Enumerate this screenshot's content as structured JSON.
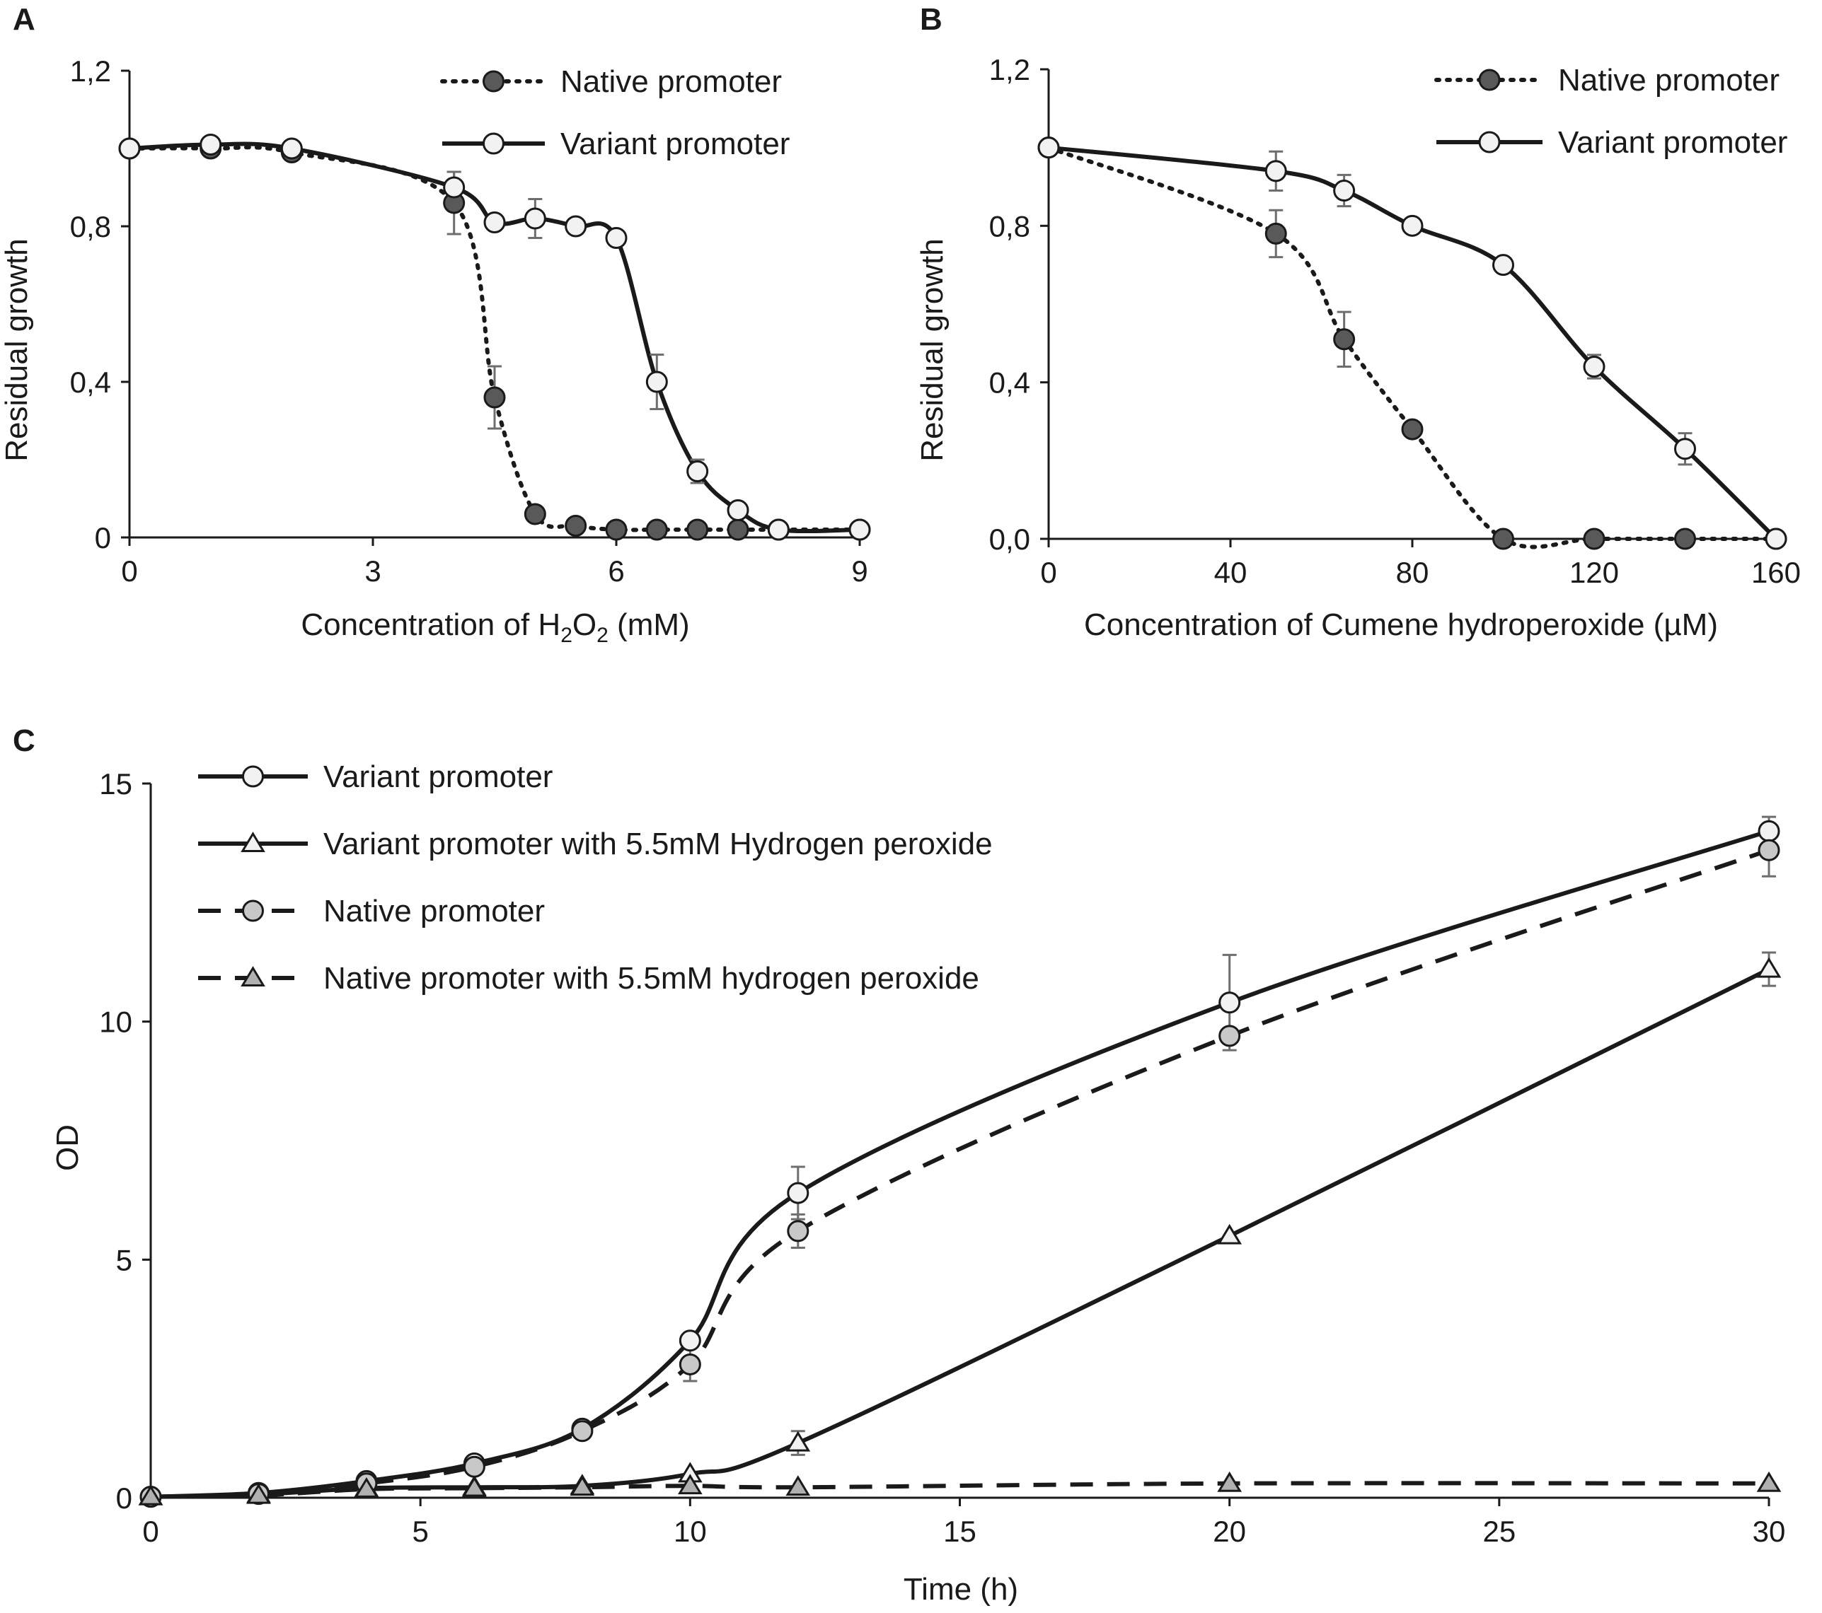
{
  "figure": {
    "panels": [
      "A",
      "B",
      "C"
    ]
  },
  "chart_data": [
    {
      "id": "A",
      "type": "line",
      "xlabel_main": "Concentration of H",
      "xlabel_sub1": "2",
      "xlabel_mid": "O",
      "xlabel_sub2": "2",
      "xlabel_end": " (mM)",
      "ylabel": "Residual growth",
      "xlim": [
        0,
        9
      ],
      "ylim": [
        0,
        1.2
      ],
      "xticks": [
        0,
        3,
        6,
        9
      ],
      "xtick_labels": [
        "0",
        "3",
        "6",
        "9"
      ],
      "yticks": [
        0,
        0.4,
        0.8,
        1.2
      ],
      "ytick_labels": [
        "0",
        "0,4",
        "0,8",
        "1,2"
      ],
      "legend_position": "top-right",
      "series": [
        {
          "name": "Native promoter",
          "style": "dotted",
          "marker": "circle",
          "marker_fill": "#595959",
          "x": [
            0,
            1,
            2,
            4,
            4.5,
            5,
            5.5,
            6,
            6.5,
            7,
            7.5,
            8,
            9
          ],
          "y": [
            1.0,
            1.0,
            0.99,
            0.86,
            0.36,
            0.06,
            0.03,
            0.02,
            0.02,
            0.02,
            0.02,
            0.02,
            0.02
          ],
          "err": [
            0,
            0,
            0,
            0.08,
            0.08,
            0,
            0,
            0,
            0,
            0,
            0,
            0,
            0
          ]
        },
        {
          "name": "Variant promoter",
          "style": "solid",
          "marker": "circle",
          "marker_fill": "#f2f2f2",
          "x": [
            0,
            1,
            2,
            4,
            4.5,
            5,
            5.5,
            6,
            6.5,
            7,
            7.5,
            8,
            9
          ],
          "y": [
            1.0,
            1.01,
            1.0,
            0.9,
            0.81,
            0.82,
            0.8,
            0.77,
            0.4,
            0.17,
            0.07,
            0.02,
            0.02
          ],
          "err": [
            0,
            0,
            0,
            0.04,
            0,
            0.05,
            0,
            0,
            0.07,
            0.03,
            0,
            0,
            0
          ]
        }
      ]
    },
    {
      "id": "B",
      "type": "line",
      "xlabel": "Concentration of Cumene hydroperoxide (µM)",
      "ylabel": "Residual growth",
      "xlim": [
        0,
        160
      ],
      "ylim": [
        0,
        1.2
      ],
      "xticks": [
        0,
        40,
        80,
        120,
        160
      ],
      "xtick_labels": [
        "0",
        "40",
        "80",
        "120",
        "160"
      ],
      "yticks": [
        0,
        0.4,
        0.8,
        1.2
      ],
      "ytick_labels": [
        "0,0",
        "0,4",
        "0,8",
        "1,2"
      ],
      "legend_position": "top-right",
      "series": [
        {
          "name": "Native promoter",
          "style": "dotted",
          "marker": "circle",
          "marker_fill": "#595959",
          "x": [
            0,
            50,
            65,
            80,
            100,
            120,
            140,
            160
          ],
          "y": [
            1.0,
            0.78,
            0.51,
            0.28,
            0.0,
            0.0,
            0.0,
            0.0
          ],
          "err": [
            0,
            0.06,
            0.07,
            0,
            0,
            0,
            0,
            0
          ]
        },
        {
          "name": "Variant promoter",
          "style": "solid",
          "marker": "circle",
          "marker_fill": "#f2f2f2",
          "x": [
            0,
            50,
            65,
            80,
            100,
            120,
            140,
            160
          ],
          "y": [
            1.0,
            0.94,
            0.89,
            0.8,
            0.7,
            0.44,
            0.23,
            0.0
          ],
          "err": [
            0,
            0.05,
            0.04,
            0,
            0,
            0.03,
            0.04,
            0
          ]
        }
      ]
    },
    {
      "id": "C",
      "type": "line",
      "xlabel": "Time (h)",
      "ylabel": "OD",
      "xlim": [
        0,
        30
      ],
      "ylim": [
        0,
        15
      ],
      "xticks": [
        0,
        5,
        10,
        15,
        20,
        25,
        30
      ],
      "xtick_labels": [
        "0",
        "5",
        "10",
        "15",
        "20",
        "25",
        "30"
      ],
      "yticks": [
        0,
        5,
        10,
        15
      ],
      "ytick_labels": [
        "0",
        "5",
        "10",
        "15"
      ],
      "legend_position": "top-left",
      "series": [
        {
          "name": "Variant promoter",
          "style": "solid",
          "marker": "circle",
          "marker_fill": "#f2f2f2",
          "x": [
            0,
            2,
            4,
            6,
            8,
            10,
            12,
            20,
            30
          ],
          "y": [
            0.02,
            0.1,
            0.35,
            0.72,
            1.45,
            3.3,
            6.4,
            10.4,
            14.0
          ],
          "err": [
            0,
            0,
            0,
            0,
            0,
            0,
            0.55,
            1.0,
            0.3
          ]
        },
        {
          "name": "Variant promoter with 5.5mM Hydrogen peroxide",
          "style": "solid",
          "marker": "triangle",
          "marker_fill": "#f2f2f2",
          "x": [
            0,
            2,
            4,
            6,
            8,
            10,
            12,
            20,
            30
          ],
          "y": [
            0.02,
            0.07,
            0.2,
            0.22,
            0.25,
            0.5,
            1.15,
            5.5,
            11.1
          ],
          "err": [
            0,
            0,
            0,
            0,
            0,
            0,
            0.25,
            0,
            0.35
          ]
        },
        {
          "name": "Native promoter",
          "style": "dashed",
          "marker": "circle",
          "marker_fill": "#c8c8c8",
          "x": [
            0,
            2,
            4,
            6,
            8,
            10,
            12,
            20,
            30
          ],
          "y": [
            0.02,
            0.08,
            0.3,
            0.65,
            1.4,
            2.8,
            5.6,
            9.7,
            13.6
          ],
          "err": [
            0,
            0,
            0,
            0,
            0,
            0.35,
            0.35,
            0,
            0.55
          ]
        },
        {
          "name": "Native promoter with 5.5mM hydrogen peroxide",
          "style": "dashed",
          "marker": "triangle",
          "marker_fill": "#b0b0b0",
          "x": [
            0,
            2,
            4,
            6,
            8,
            10,
            12,
            20,
            30
          ],
          "y": [
            0.02,
            0.05,
            0.18,
            0.2,
            0.22,
            0.25,
            0.22,
            0.3,
            0.3
          ],
          "err": [
            0,
            0,
            0,
            0,
            0,
            0,
            0,
            0,
            0
          ]
        }
      ]
    }
  ]
}
